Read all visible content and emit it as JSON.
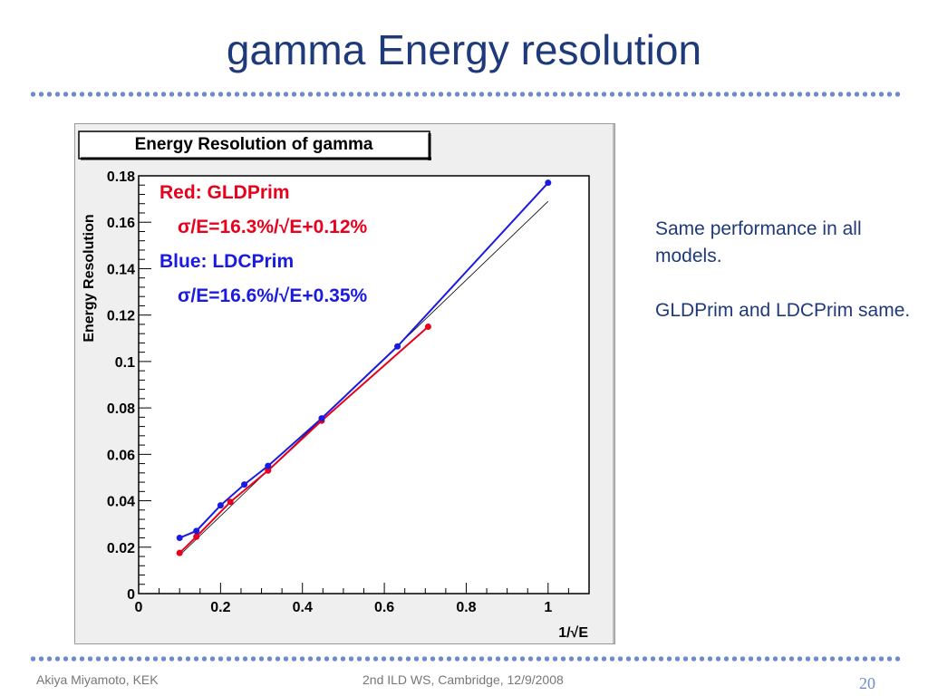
{
  "slide": {
    "title": "gamma Energy resolution",
    "notes": [
      "Same performance in all models.",
      "GLDPrim and LDCPrim same."
    ],
    "footer_author": "Akiya Miyamoto, KEK",
    "footer_event": "2nd ILD WS, Cambridge, 12/9/2008",
    "page_number": "20"
  },
  "chart_data": {
    "type": "line",
    "title": "Energy Resolution of gamma",
    "xlabel": "1/√E",
    "ylabel": "Energy Resolution",
    "xlim": [
      0,
      1.1
    ],
    "ylim": [
      0,
      0.18
    ],
    "xticks": [
      "0",
      "0.2",
      "0.4",
      "0.6",
      "0.8",
      "1"
    ],
    "yticks": [
      "0",
      "0.02",
      "0.04",
      "0.06",
      "0.08",
      "0.1",
      "0.12",
      "0.14",
      "0.16",
      "0.18"
    ],
    "annotations": [
      {
        "text": "Red: GLDPrim",
        "color": "#e8001c"
      },
      {
        "text": "σ/E=16.3%/√E+0.12%",
        "color": "#e8001c"
      },
      {
        "text": "Blue: LDCPrim",
        "color": "#1a1ae0"
      },
      {
        "text": "σ/E=16.6%/√E+0.35%",
        "color": "#1a1ae0"
      }
    ],
    "series": [
      {
        "color": "#e8001c",
        "x": [
          0.1,
          0.141,
          0.224,
          0.316,
          0.447,
          0.707
        ],
        "y": [
          0.0175,
          0.0245,
          0.0395,
          0.053,
          0.0745,
          0.115
        ]
      },
      {
        "color": "#1a1ae0",
        "x": [
          0.1,
          0.141,
          0.2,
          0.258,
          0.316,
          0.447,
          0.632,
          1.0
        ],
        "y": [
          0.024,
          0.027,
          0.038,
          0.047,
          0.055,
          0.0755,
          0.1065,
          0.177
        ]
      }
    ],
    "reference_line": {
      "color": "#000000",
      "x": [
        0.1,
        1.0
      ],
      "y": [
        0.0165,
        0.169
      ]
    }
  }
}
